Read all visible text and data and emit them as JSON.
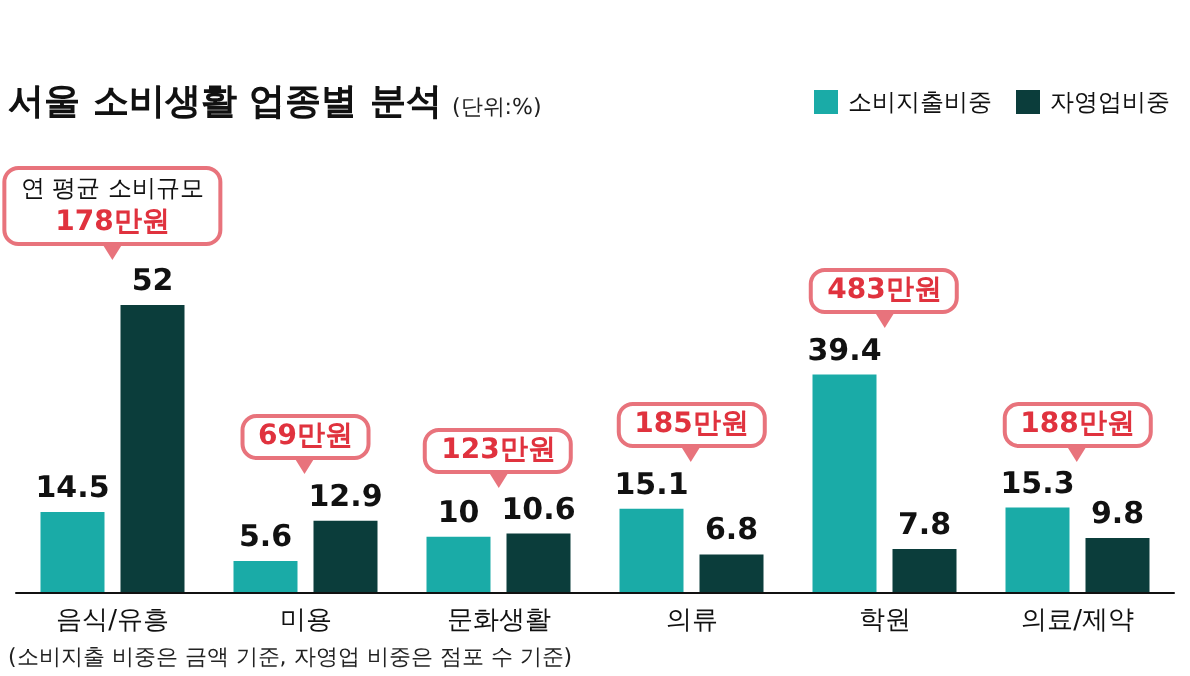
{
  "chart_data": {
    "type": "bar",
    "title": "서울 소비생활 업종별 분석",
    "subtitle": "(단위:%)",
    "categories": [
      "음식/유흥",
      "미용",
      "문화생활",
      "의류",
      "학원",
      "의료/제약"
    ],
    "series": [
      {
        "name": "소비지출비중",
        "color": "#1aaba7",
        "values": [
          14.5,
          5.6,
          10,
          15.1,
          39.4,
          15.3
        ]
      },
      {
        "name": "자영업비중",
        "color": "#0b3d3b",
        "values": [
          52,
          12.9,
          10.6,
          6.8,
          7.8,
          9.8
        ]
      }
    ],
    "data_labels": true,
    "legend": "top right",
    "annotations": [
      "연 평균 소비규모\n178만원",
      "69만원",
      "123만원",
      "185만원",
      "483만원",
      "188만원",
      "(소비지출 비중은 금액 기준, 자영업 비중은 점포 수 기준)"
    ]
  }
}
